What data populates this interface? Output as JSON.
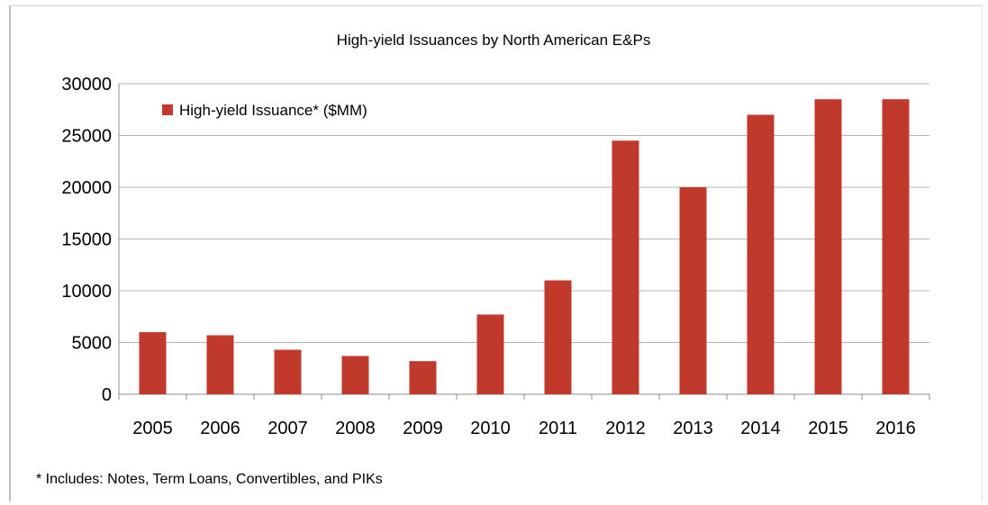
{
  "chart_data": {
    "type": "bar",
    "title": "High-yield Issuances by North American E&Ps",
    "categories": [
      "2005",
      "2006",
      "2007",
      "2008",
      "2009",
      "2010",
      "2011",
      "2012",
      "2013",
      "2014",
      "2015",
      "2016"
    ],
    "series": [
      {
        "name": "High-yield Issuance* ($MM)",
        "values": [
          6000,
          5700,
          4300,
          3700,
          3200,
          7700,
          11000,
          24500,
          20000,
          27000,
          28500,
          28500
        ],
        "color": "#c0392b"
      }
    ],
    "ylim": [
      0,
      30000
    ],
    "yticks": [
      0,
      5000,
      10000,
      15000,
      20000,
      25000,
      30000
    ],
    "grid": true,
    "legend": "top-left"
  },
  "footnote": "* Includes: Notes, Term Loans, Convertibles, and PIKs"
}
